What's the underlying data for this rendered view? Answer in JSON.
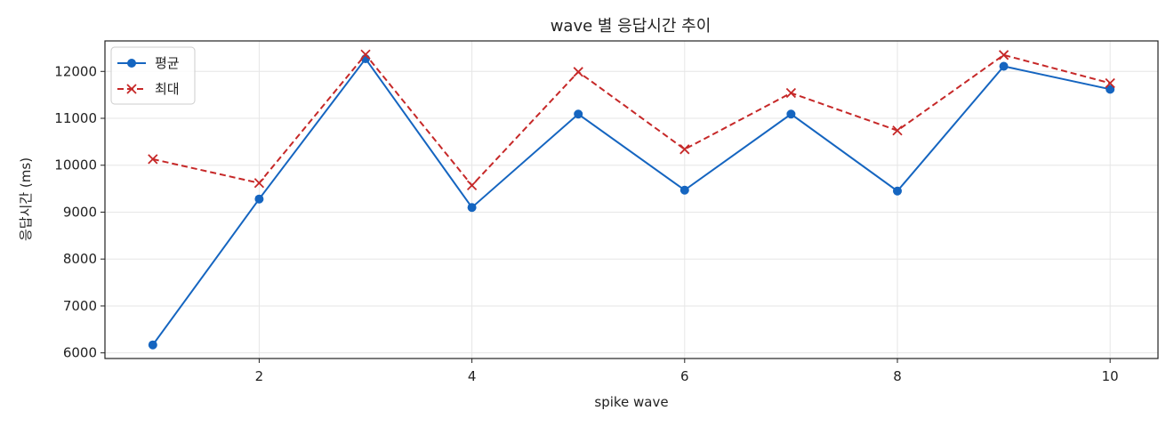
{
  "chart_data": {
    "type": "line",
    "title": "wave 별 응답시간 추이",
    "xlabel": "spike wave",
    "ylabel": "응답시간 (ms)",
    "x": [
      1,
      2,
      3,
      4,
      5,
      6,
      7,
      8,
      9,
      10
    ],
    "xlim": [
      0.55,
      10.45
    ],
    "ylim": [
      5880,
      12650
    ],
    "xticks": [
      2,
      4,
      6,
      8,
      10
    ],
    "yticks": [
      6000,
      7000,
      8000,
      9000,
      10000,
      11000,
      12000
    ],
    "grid": true,
    "legend_position": "top-left",
    "series": [
      {
        "name": "평균",
        "values": [
          6170,
          9280,
          12270,
          9100,
          11090,
          9470,
          11090,
          9450,
          12110,
          11620
        ],
        "color": "#1565c0",
        "line_style": "solid",
        "marker": "circle"
      },
      {
        "name": "최대",
        "values": [
          10130,
          9620,
          12360,
          9570,
          11990,
          10340,
          11540,
          10740,
          12350,
          11750
        ],
        "color": "#c62828",
        "line_style": "dashed",
        "marker": "x"
      }
    ]
  }
}
